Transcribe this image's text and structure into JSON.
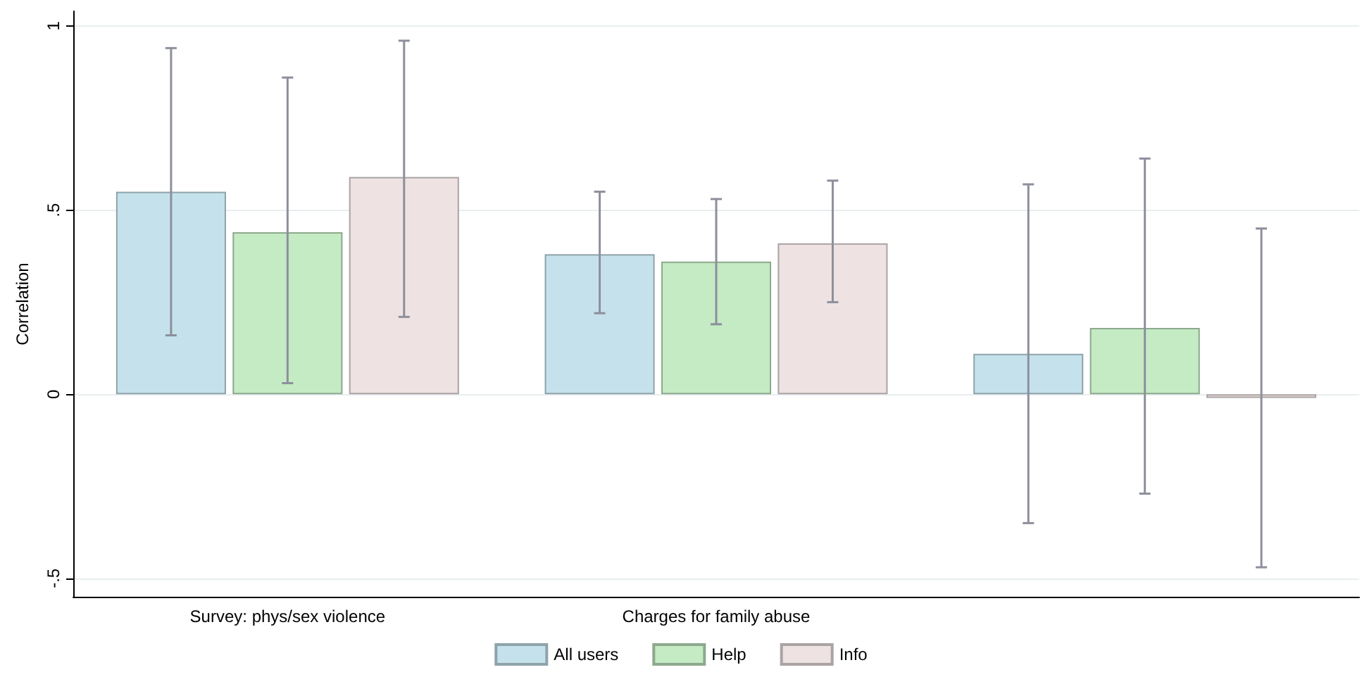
{
  "chart_data": {
    "type": "bar",
    "ylabel": "Correlation",
    "categories": [
      "Survey: phys/sex violence",
      "Charges for family abuse",
      null
    ],
    "series": [
      {
        "name": "All users",
        "color": "#c5e2ec",
        "values": [
          0.55,
          0.38,
          0.11
        ],
        "errors": [
          [
            0.16,
            0.94
          ],
          [
            0.22,
            0.55
          ],
          [
            -0.35,
            0.57
          ]
        ]
      },
      {
        "name": "Help",
        "color": "#c4ebc4",
        "values": [
          0.44,
          0.36,
          0.18
        ],
        "errors": [
          [
            0.03,
            0.86
          ],
          [
            0.19,
            0.53
          ],
          [
            -0.27,
            0.64
          ]
        ]
      },
      {
        "name": "Info",
        "color": "#eee3e2",
        "values": [
          0.59,
          0.41,
          -0.01
        ],
        "errors": [
          [
            0.21,
            0.96
          ],
          [
            0.25,
            0.58
          ],
          [
            -0.47,
            0.45
          ]
        ]
      }
    ],
    "ylim": [
      -0.55,
      1.04
    ],
    "yticks": [
      {
        "value": -0.5,
        "label": "-.5"
      },
      0,
      {
        "value": 0.5,
        "label": ".5"
      },
      1
    ],
    "grid": "y",
    "legend": "bottom"
  }
}
